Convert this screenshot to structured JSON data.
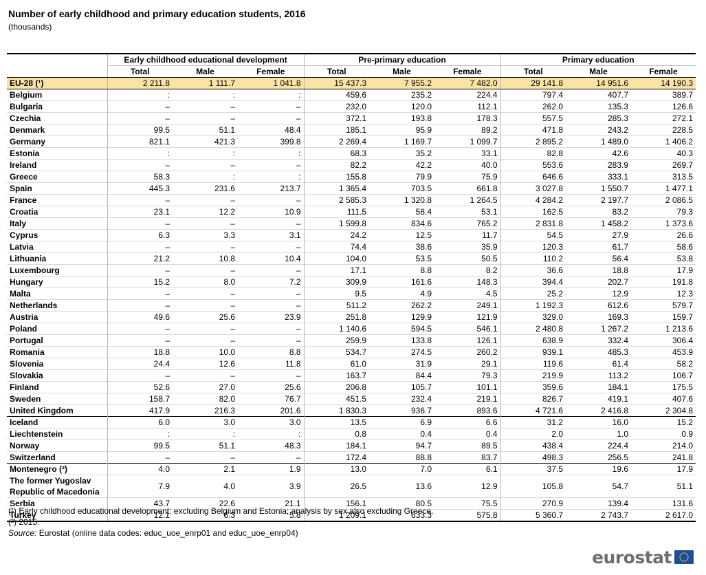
{
  "title": "Number of early childhood and primary education students, 2016",
  "subtitle": "(thousands)",
  "groups": {
    "ecd": "Early childhood educational development",
    "pre": "Pre-primary education",
    "pri": "Primary education"
  },
  "subheaders": [
    "Total",
    "Male",
    "Female"
  ],
  "rows": [
    {
      "country": "EU-28 (¹)",
      "v": [
        "2 211.8",
        "1 111.7",
        "1 041.8",
        "15 437.3",
        "7 955.2",
        "7 482.0",
        "29 141.8",
        "14 951.6",
        "14 190.3"
      ],
      "cls": "eu"
    },
    {
      "country": "Belgium",
      "v": [
        ":",
        ":",
        ":",
        "459.6",
        "235.2",
        "224.4",
        "797.4",
        "407.7",
        "389.7"
      ]
    },
    {
      "country": "Bulgaria",
      "v": [
        "–",
        "–",
        "–",
        "232.0",
        "120.0",
        "112.1",
        "262.0",
        "135.3",
        "126.6"
      ]
    },
    {
      "country": "Czechia",
      "v": [
        "–",
        "–",
        "–",
        "372.1",
        "193.8",
        "178.3",
        "557.5",
        "285.3",
        "272.1"
      ]
    },
    {
      "country": "Denmark",
      "v": [
        "99.5",
        "51.1",
        "48.4",
        "185.1",
        "95.9",
        "89.2",
        "471.8",
        "243.2",
        "228.5"
      ]
    },
    {
      "country": "Germany",
      "v": [
        "821.1",
        "421.3",
        "399.8",
        "2 269.4",
        "1 169.7",
        "1 099.7",
        "2 895.2",
        "1 489.0",
        "1 406.2"
      ]
    },
    {
      "country": "Estonia",
      "v": [
        ":",
        ":",
        ":",
        "68.3",
        "35.2",
        "33.1",
        "82.8",
        "42.6",
        "40.3"
      ]
    },
    {
      "country": "Ireland",
      "v": [
        "–",
        "–",
        "–",
        "82.2",
        "42.2",
        "40.0",
        "553.6",
        "283.9",
        "269.7"
      ]
    },
    {
      "country": "Greece",
      "v": [
        "58.3",
        ":",
        ":",
        "155.8",
        "79.9",
        "75.9",
        "646.6",
        "333.1",
        "313.5"
      ]
    },
    {
      "country": "Spain",
      "v": [
        "445.3",
        "231.6",
        "213.7",
        "1 365.4",
        "703.5",
        "661.8",
        "3 027.8",
        "1 550.7",
        "1 477.1"
      ]
    },
    {
      "country": "France",
      "v": [
        "–",
        "–",
        "–",
        "2 585.3",
        "1 320.8",
        "1 264.5",
        "4 284.2",
        "2 197.7",
        "2 086.5"
      ]
    },
    {
      "country": "Croatia",
      "v": [
        "23.1",
        "12.2",
        "10.9",
        "111.5",
        "58.4",
        "53.1",
        "162.5",
        "83.2",
        "79.3"
      ]
    },
    {
      "country": "Italy",
      "v": [
        "–",
        "–",
        "–",
        "1 599.8",
        "834.6",
        "765.2",
        "2 831.8",
        "1 458.2",
        "1 373.6"
      ]
    },
    {
      "country": "Cyprus",
      "v": [
        "6.3",
        "3.3",
        "3.1",
        "24.2",
        "12.5",
        "11.7",
        "54.5",
        "27.9",
        "26.6"
      ]
    },
    {
      "country": "Latvia",
      "v": [
        "–",
        "–",
        "–",
        "74.4",
        "38.6",
        "35.9",
        "120.3",
        "61.7",
        "58.6"
      ]
    },
    {
      "country": "Lithuania",
      "v": [
        "21.2",
        "10.8",
        "10.4",
        "104.0",
        "53.5",
        "50.5",
        "110.2",
        "56.4",
        "53.8"
      ]
    },
    {
      "country": "Luxembourg",
      "v": [
        "–",
        "–",
        "–",
        "17.1",
        "8.8",
        "8.2",
        "36.6",
        "18.8",
        "17.9"
      ]
    },
    {
      "country": "Hungary",
      "v": [
        "15.2",
        "8.0",
        "7.2",
        "309.9",
        "161.6",
        "148.3",
        "394.4",
        "202.7",
        "191.8"
      ]
    },
    {
      "country": "Malta",
      "v": [
        "–",
        "–",
        "–",
        "9.5",
        "4.9",
        "4.5",
        "25.2",
        "12.9",
        "12.3"
      ]
    },
    {
      "country": "Netherlands",
      "v": [
        "–",
        "–",
        "–",
        "511.2",
        "262.2",
        "249.1",
        "1 192.3",
        "612.6",
        "579.7"
      ]
    },
    {
      "country": "Austria",
      "v": [
        "49.6",
        "25.6",
        "23.9",
        "251.8",
        "129.9",
        "121.9",
        "329.0",
        "169.3",
        "159.7"
      ]
    },
    {
      "country": "Poland",
      "v": [
        "–",
        "–",
        "–",
        "1 140.6",
        "594.5",
        "546.1",
        "2 480.8",
        "1 267.2",
        "1 213.6"
      ]
    },
    {
      "country": "Portugal",
      "v": [
        "–",
        "–",
        "–",
        "259.9",
        "133.8",
        "126.1",
        "638.9",
        "332.4",
        "306.4"
      ]
    },
    {
      "country": "Romania",
      "v": [
        "18.8",
        "10.0",
        "8.8",
        "534.7",
        "274.5",
        "260.2",
        "939.1",
        "485.3",
        "453.9"
      ]
    },
    {
      "country": "Slovenia",
      "v": [
        "24.4",
        "12.6",
        "11.8",
        "61.0",
        "31.9",
        "29.1",
        "119.6",
        "61.4",
        "58.2"
      ]
    },
    {
      "country": "Slovakia",
      "v": [
        "–",
        "–",
        "–",
        "163.7",
        "84.4",
        "79.3",
        "219.9",
        "113.2",
        "106.7"
      ]
    },
    {
      "country": "Finland",
      "v": [
        "52.6",
        "27.0",
        "25.6",
        "206.8",
        "105.7",
        "101.1",
        "359.6",
        "184.1",
        "175.5"
      ]
    },
    {
      "country": "Sweden",
      "v": [
        "158.7",
        "82.0",
        "76.7",
        "451.5",
        "232.4",
        "219.1",
        "826.7",
        "419.1",
        "407.6"
      ]
    },
    {
      "country": "United Kingdom",
      "v": [
        "417.9",
        "216.3",
        "201.6",
        "1 830.3",
        "936.7",
        "893.6",
        "4 721.6",
        "2 416.8",
        "2 304.8"
      ]
    },
    {
      "country": "Iceland",
      "v": [
        "6.0",
        "3.0",
        "3.0",
        "13.5",
        "6.9",
        "6.6",
        "31.2",
        "16.0",
        "15.2"
      ],
      "cls": "sep"
    },
    {
      "country": "Liechtenstein",
      "v": [
        ":",
        ":",
        ":",
        "0.8",
        "0.4",
        "0.4",
        "2.0",
        "1.0",
        "0.9"
      ]
    },
    {
      "country": "Norway",
      "v": [
        "99.5",
        "51.1",
        "48.3",
        "184.1",
        "94.7",
        "89.5",
        "438.4",
        "224.4",
        "214.0"
      ]
    },
    {
      "country": "Switzerland",
      "v": [
        "–",
        "–",
        "–",
        "172.4",
        "88.8",
        "83.7",
        "498.3",
        "256.5",
        "241.8"
      ]
    },
    {
      "country": "Montenegro (²)",
      "v": [
        "4.0",
        "2.1",
        "1.9",
        "13.0",
        "7.0",
        "6.1",
        "37.5",
        "19.6",
        "17.9"
      ],
      "cls": "sep"
    },
    {
      "country": "The former Yugoslav Republic of Macedonia",
      "v": [
        "7.9",
        "4.0",
        "3.9",
        "26.5",
        "13.6",
        "12.9",
        "105.8",
        "54.7",
        "51.1"
      ],
      "cls": "tall"
    },
    {
      "country": "Serbia",
      "v": [
        "43.7",
        "22.6",
        "21.1",
        "156.1",
        "80.5",
        "75.5",
        "270.9",
        "139.4",
        "131.6"
      ]
    },
    {
      "country": "Turkey",
      "v": [
        "12.1",
        "6.3",
        "5.8",
        "1 209.1",
        "633.3",
        "575.8",
        "5 360.7",
        "2 743.7",
        "2 617.0"
      ],
      "cls": "last"
    }
  ],
  "footnotes": {
    "note1": "(¹) Early childhood educational development: excluding Belgium and Estonia; analysis by sex also excluding Greece.",
    "note2": "(²) 2015.",
    "source_label": "Source:",
    "source_text": " Eurostat (online data codes: educ_uoe_enrp01 and educ_uoe_enrp04)"
  },
  "logo": {
    "text": "eurostat",
    "flag_color": "#1d4e9c",
    "star_color": "#f5d200"
  }
}
